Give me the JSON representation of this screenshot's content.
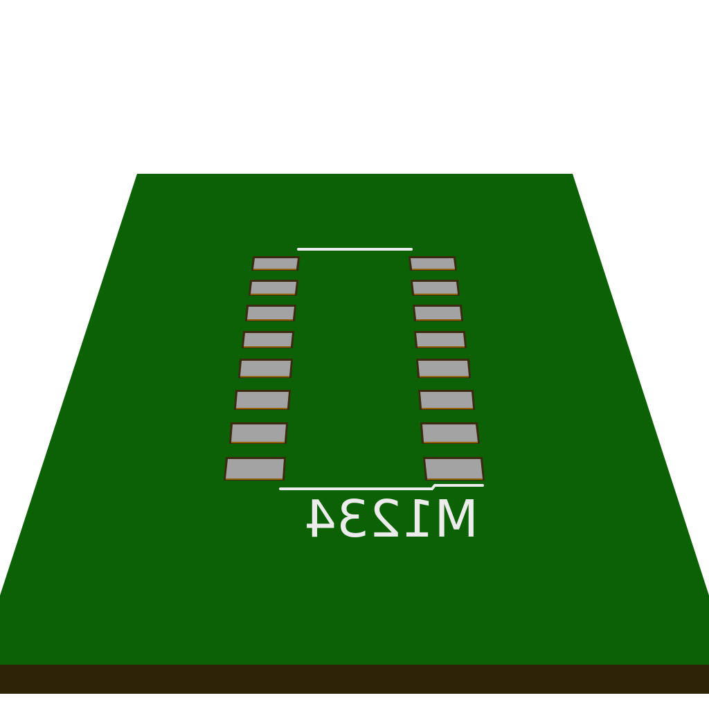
{
  "board": {
    "surface_color": "#0b6104",
    "edge_color": "#2e2306",
    "background_color": "#ffffff"
  },
  "component": {
    "reference": "M1234",
    "silkscreen_color": "#ececec",
    "pad_color": "#a3a3a3",
    "pad_outline_color": "#3a2a10",
    "pads_per_side": 8,
    "mirrored_label": true
  }
}
